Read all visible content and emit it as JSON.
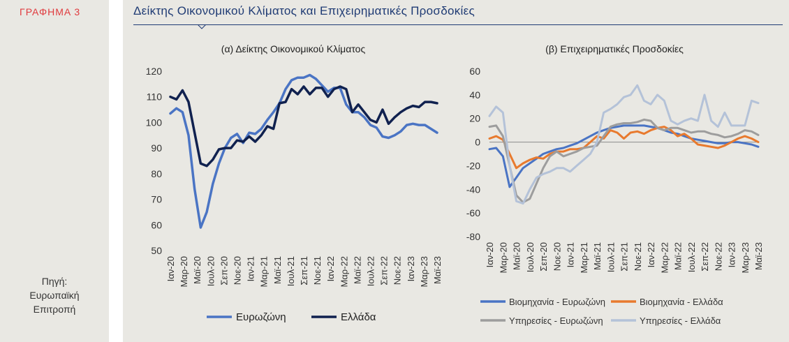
{
  "figure_label": "ΓΡΑΦΗΜΑ 3",
  "figure_title": "Δείκτης Οικονομικού Κλίματος και Επιχειρηματικές Προσδοκίες",
  "source": {
    "line1": "Πηγή:",
    "line2": "Ευρωπαϊκή",
    "line3": "Επιτροπή"
  },
  "colors": {
    "euro_blue": "#4a74c4",
    "greece_navy": "#10214f",
    "orange": "#e87a2e",
    "grey": "#9d9d9d",
    "light_blue": "#b4c2d8",
    "title_navy": "#1f3b74",
    "fig_label_red": "#e03a3e"
  },
  "chart_data": [
    {
      "type": "line",
      "title": "(α) Δείκτης Οικονομικού Κλίματος",
      "ylim": [
        50,
        120
      ],
      "yticks": [
        50,
        60,
        70,
        80,
        90,
        100,
        110,
        120
      ],
      "x_labels": [
        "Ιαν-20",
        "Μαρ-20",
        "Μαϊ-20",
        "Ιουλ-20",
        "Σεπ-20",
        "Νοε-20",
        "Ιαν-21",
        "Μαρ-21",
        "Μαϊ-21",
        "Ιουλ-21",
        "Σεπ-21",
        "Νοε-21",
        "Ιαν-22",
        "Μαρ-22",
        "Μαϊ-22",
        "Ιουλ-22",
        "Σεπ-22",
        "Νοε-22",
        "Ιαν-23",
        "Μαρ-23",
        "Μαϊ-23"
      ],
      "legend": [
        "Ευρωζώνη",
        "Ελλάδα"
      ],
      "series": [
        {
          "name": "Ευρωζώνη",
          "values": [
            103.5,
            105.5,
            104,
            95,
            74,
            59,
            65,
            76,
            84,
            90,
            94,
            95.5,
            92,
            96,
            95.5,
            97.5,
            101,
            104,
            107.5,
            113,
            116.5,
            117.5,
            117.5,
            118.5,
            117,
            114.5,
            112,
            113.5,
            113.5,
            107,
            104,
            104,
            102,
            99,
            98,
            94.5,
            94,
            95,
            96.5,
            99,
            99.5,
            99,
            99,
            97.5,
            96
          ]
        },
        {
          "name": "Ελλάδα",
          "values": [
            110,
            109,
            112.5,
            108,
            96,
            84,
            83,
            85.5,
            89.5,
            90,
            90,
            93,
            92.5,
            94.5,
            92.5,
            95,
            98.5,
            97.5,
            107.5,
            108,
            113,
            111,
            114,
            111,
            113.5,
            113.5,
            110,
            113,
            114,
            113,
            104,
            107,
            104,
            101,
            100,
            105,
            99.5,
            102,
            104,
            105.5,
            106.5,
            106,
            108,
            108,
            107.5
          ]
        }
      ]
    },
    {
      "type": "line",
      "title": "(β) Επιχειρηματικές Προσδοκίες",
      "ylim": [
        -80,
        60
      ],
      "yticks": [
        -80,
        -60,
        -40,
        -20,
        0,
        20,
        40,
        60
      ],
      "x_labels": [
        "Ιαν-20",
        "Μαρ-20",
        "Μαϊ-20",
        "Ιουλ-20",
        "Σεπ-20",
        "Νοε-20",
        "Ιαν-21",
        "Μαρ-21",
        "Μαϊ-21",
        "Ιουλ-21",
        "Σεπ-21",
        "Νοε-21",
        "Ιαν-22",
        "Μαρ-22",
        "Μαϊ-22",
        "Ιουλ-22",
        "Σεπ-22",
        "Νοε-22",
        "Ιαν-23",
        "Μαρ-23",
        "Μαϊ-23"
      ],
      "legend": [
        "Βιομηχανία - Ευρωζώνη",
        "Βιομηχανία - Ελλάδα",
        "Υπηρεσίες - Ευρωζώνη",
        "Υπηρεσίες - Ελλάδα"
      ],
      "series": [
        {
          "name": "Βιομηχανία - Ευρωζώνη",
          "values": [
            -6,
            -5,
            -12,
            -38,
            -30,
            -22,
            -18,
            -14,
            -10,
            -8,
            -6,
            -5,
            -3,
            -1,
            2,
            5,
            8,
            10,
            12,
            13,
            14,
            14,
            14,
            14,
            13,
            12,
            10,
            8,
            7,
            5,
            3,
            2,
            1,
            0,
            -1,
            -1,
            0,
            0,
            -1,
            -2,
            -4
          ]
        },
        {
          "name": "Βιομηχανία - Ελλάδα",
          "values": [
            3,
            5,
            2,
            -10,
            -22,
            -18,
            -15,
            -13,
            -14,
            -10,
            -8,
            -8,
            -6,
            -6,
            -5,
            0,
            5,
            3,
            10,
            8,
            3,
            8,
            9,
            7,
            10,
            12,
            13,
            10,
            5,
            7,
            3,
            -2,
            -3,
            -4,
            -5,
            -3,
            0,
            3,
            5,
            3,
            0
          ]
        },
        {
          "name": "Υπηρεσίες - Ευρωζώνη",
          "values": [
            13,
            14,
            5,
            -20,
            -45,
            -51,
            -48,
            -35,
            -22,
            -12,
            -8,
            -12,
            -10,
            -8,
            -5,
            -4,
            -3,
            5,
            13,
            15,
            16,
            16,
            17,
            19,
            18,
            12,
            10,
            12,
            12,
            10,
            8,
            9,
            9,
            7,
            6,
            4,
            5,
            7,
            10,
            9,
            6
          ]
        },
        {
          "name": "Υπηρεσίες - Ελλάδα",
          "values": [
            22,
            30,
            25,
            -20,
            -50,
            -52,
            -40,
            -30,
            -27,
            -25,
            -22,
            -22,
            -25,
            -20,
            -15,
            -10,
            0,
            25,
            28,
            32,
            38,
            40,
            48,
            35,
            32,
            40,
            35,
            18,
            15,
            18,
            20,
            18,
            40,
            18,
            13,
            25,
            14,
            14,
            14,
            35,
            33
          ]
        }
      ]
    }
  ]
}
